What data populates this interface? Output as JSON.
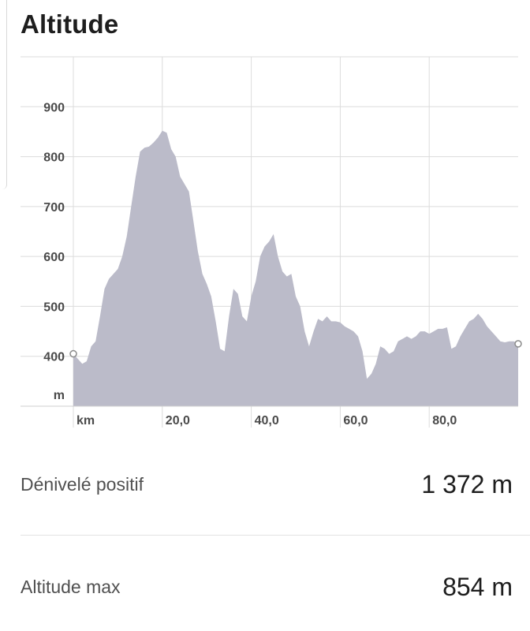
{
  "header": {
    "title": "Altitude"
  },
  "chart_data": {
    "type": "area",
    "title": "Altitude",
    "x_unit": "km",
    "y_unit": "m",
    "xlim": [
      0,
      100
    ],
    "ylim": [
      300,
      1000
    ],
    "x_ticks": [
      20,
      40,
      60,
      80
    ],
    "x_tick_labels": [
      "20,0",
      "40,0",
      "60,0",
      "80,0"
    ],
    "y_ticks": [
      400,
      500,
      600,
      700,
      800,
      900
    ],
    "y_tick_labels": [
      "400",
      "500",
      "600",
      "700",
      "800",
      "900"
    ],
    "grid": true,
    "fill_color": "#bbbbc9",
    "grid_color": "#dcdcdc",
    "x": [
      0,
      1,
      2,
      3,
      4,
      5,
      6,
      7,
      8,
      9,
      10,
      11,
      12,
      13,
      14,
      15,
      16,
      17,
      18,
      19,
      20,
      21,
      22,
      23,
      24,
      25,
      26,
      27,
      28,
      29,
      30,
      31,
      32,
      33,
      34,
      35,
      36,
      37,
      38,
      39,
      40,
      41,
      42,
      43,
      44,
      45,
      46,
      47,
      48,
      49,
      50,
      51,
      52,
      53,
      54,
      55,
      56,
      57,
      58,
      59,
      60,
      61,
      62,
      63,
      64,
      65,
      66,
      67,
      68,
      69,
      70,
      71,
      72,
      73,
      74,
      75,
      76,
      77,
      78,
      79,
      80,
      81,
      82,
      83,
      84,
      85,
      86,
      87,
      88,
      89,
      90,
      91,
      92,
      93,
      94,
      95,
      96,
      97,
      98,
      99,
      100
    ],
    "y": [
      405,
      395,
      385,
      390,
      420,
      430,
      480,
      535,
      555,
      565,
      575,
      600,
      640,
      700,
      760,
      810,
      818,
      820,
      828,
      838,
      852,
      848,
      815,
      800,
      760,
      745,
      730,
      670,
      610,
      565,
      545,
      520,
      470,
      415,
      410,
      480,
      535,
      525,
      480,
      470,
      520,
      550,
      600,
      620,
      630,
      645,
      600,
      570,
      560,
      565,
      520,
      500,
      450,
      420,
      450,
      475,
      470,
      480,
      470,
      470,
      468,
      460,
      455,
      450,
      440,
      410,
      355,
      365,
      385,
      420,
      415,
      405,
      410,
      430,
      435,
      440,
      435,
      440,
      450,
      450,
      445,
      450,
      455,
      455,
      458,
      415,
      420,
      440,
      455,
      470,
      475,
      485,
      475,
      460,
      450,
      440,
      430,
      428,
      430,
      430,
      425
    ]
  },
  "stats": {
    "elevation_gain_label": "Dénivelé positif",
    "elevation_gain_value": "1 372 m",
    "max_altitude_label": "Altitude max",
    "max_altitude_value": "854 m"
  }
}
